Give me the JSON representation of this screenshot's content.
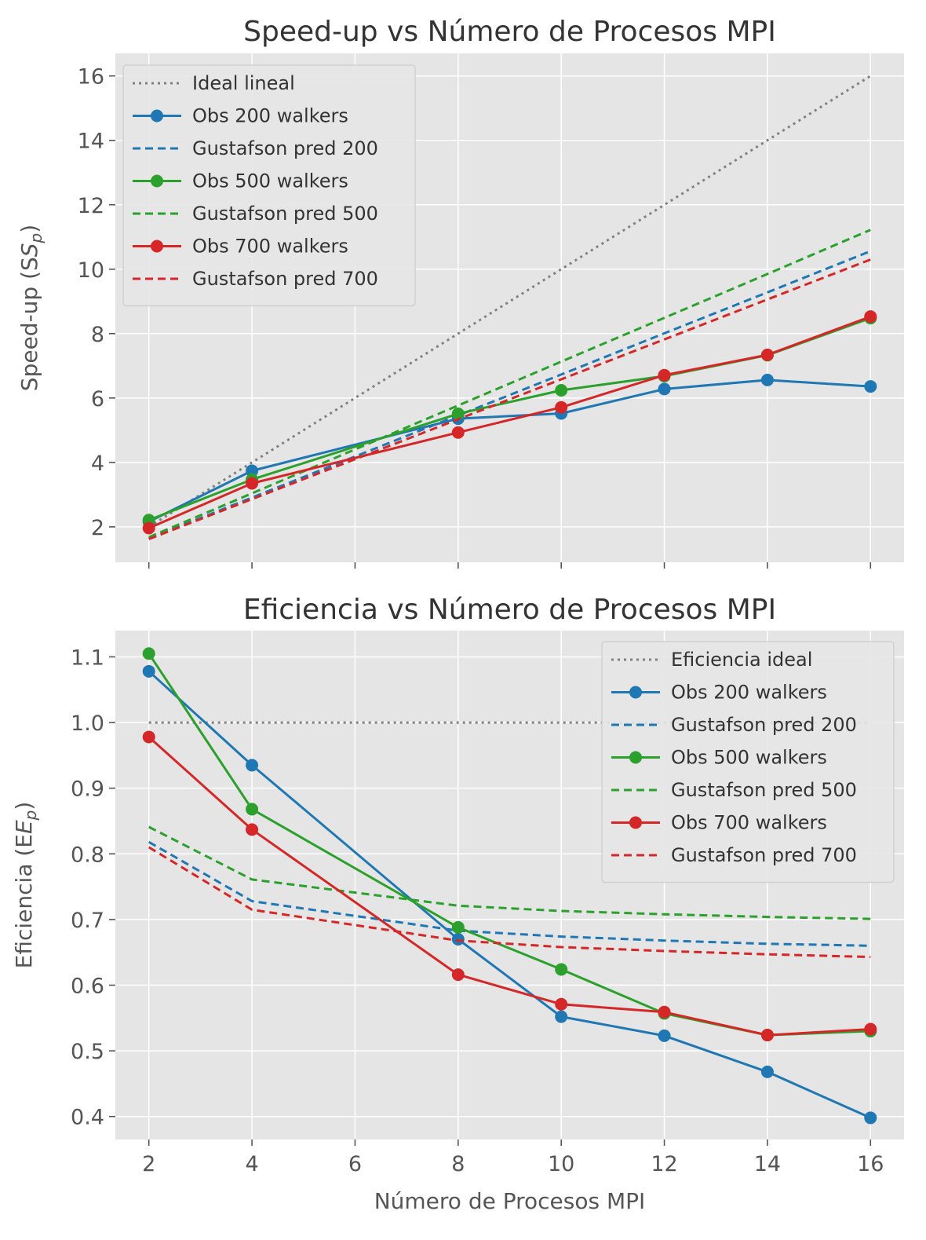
{
  "chart_data": [
    {
      "type": "line",
      "title": "Speed-up vs Número de Procesos MPI",
      "xlabel": "",
      "ylabel": "Speed-up (S",
      "ylabel_sub": "p",
      "ylabel_close": ")",
      "xlim": [
        1.35,
        16.65
      ],
      "ylim": [
        0.9,
        16.7
      ],
      "x_ticks": [
        2,
        4,
        6,
        8,
        10,
        12,
        14,
        16
      ],
      "x_tick_labels_shown": false,
      "y_ticks": [
        2,
        4,
        6,
        8,
        10,
        12,
        14,
        16
      ],
      "grid": true,
      "legend_position": "upper-left",
      "series": [
        {
          "name": "Ideal lineal",
          "style": "dotted",
          "color": "#808080",
          "markers": false,
          "x": [
            2,
            4,
            6,
            8,
            10,
            12,
            14,
            16
          ],
          "y": [
            2,
            4,
            6,
            8,
            10,
            12,
            14,
            16
          ]
        },
        {
          "name": "Obs 200 walkers",
          "style": "solid",
          "color": "#1f77b4",
          "markers": true,
          "x": [
            2,
            4,
            8,
            10,
            12,
            14,
            16
          ],
          "y": [
            2.16,
            3.74,
            5.36,
            5.52,
            6.28,
            6.56,
            6.36
          ]
        },
        {
          "name": "Gustafson pred 200",
          "style": "dashed",
          "color": "#1f77b4",
          "markers": false,
          "x": [
            2,
            4,
            8,
            10,
            12,
            14,
            16
          ],
          "y": [
            1.64,
            2.91,
            5.46,
            6.73,
            8.01,
            9.28,
            10.56
          ]
        },
        {
          "name": "Obs 500 walkers",
          "style": "solid",
          "color": "#2ca02c",
          "markers": true,
          "x": [
            2,
            4,
            8,
            10,
            12,
            14,
            16
          ],
          "y": [
            2.21,
            3.47,
            5.51,
            6.24,
            6.68,
            7.33,
            8.48
          ]
        },
        {
          "name": "Gustafson pred 500",
          "style": "dashed",
          "color": "#2ca02c",
          "markers": false,
          "x": [
            2,
            4,
            8,
            10,
            12,
            14,
            16
          ],
          "y": [
            1.68,
            3.04,
            5.77,
            7.13,
            8.49,
            9.85,
            11.22
          ]
        },
        {
          "name": "Obs 700 walkers",
          "style": "solid",
          "color": "#d62728",
          "markers": true,
          "x": [
            2,
            4,
            8,
            10,
            12,
            14,
            16
          ],
          "y": [
            1.96,
            3.35,
            4.93,
            5.71,
            6.71,
            7.34,
            8.53
          ]
        },
        {
          "name": "Gustafson pred 700",
          "style": "dashed",
          "color": "#d62728",
          "markers": false,
          "x": [
            2,
            4,
            8,
            10,
            12,
            14,
            16
          ],
          "y": [
            1.62,
            2.86,
            5.34,
            6.58,
            7.82,
            9.06,
            10.3
          ]
        }
      ]
    },
    {
      "type": "line",
      "title": "Eficiencia vs Número de Procesos MPI",
      "xlabel": "Número de Procesos MPI",
      "ylabel": "Eficiencia (E",
      "ylabel_sub": "p",
      "ylabel_close": ")",
      "xlim": [
        1.35,
        16.65
      ],
      "ylim": [
        0.365,
        1.14
      ],
      "x_ticks": [
        2,
        4,
        6,
        8,
        10,
        12,
        14,
        16
      ],
      "x_tick_labels_shown": true,
      "y_ticks": [
        0.4,
        0.5,
        0.6,
        0.7,
        0.8,
        0.9,
        1.0,
        1.1
      ],
      "y_tick_labels": [
        "0.4",
        "0.5",
        "0.6",
        "0.7",
        "0.8",
        "0.9",
        "1.0",
        "1.1"
      ],
      "grid": true,
      "legend_position": "upper-right",
      "series": [
        {
          "name": "Eficiencia ideal",
          "style": "dotted",
          "color": "#808080",
          "markers": false,
          "x": [
            2,
            4,
            6,
            8,
            10,
            12,
            14,
            16
          ],
          "y": [
            1,
            1,
            1,
            1,
            1,
            1,
            1,
            1
          ]
        },
        {
          "name": "Obs 200 walkers",
          "style": "solid",
          "color": "#1f77b4",
          "markers": true,
          "x": [
            2,
            4,
            8,
            10,
            12,
            14,
            16
          ],
          "y": [
            1.078,
            0.935,
            0.67,
            0.552,
            0.523,
            0.468,
            0.398
          ]
        },
        {
          "name": "Gustafson pred 200",
          "style": "dashed",
          "color": "#1f77b4",
          "markers": false,
          "x": [
            2,
            4,
            8,
            10,
            12,
            14,
            16
          ],
          "y": [
            0.818,
            0.728,
            0.683,
            0.674,
            0.668,
            0.663,
            0.66
          ]
        },
        {
          "name": "Obs 500 walkers",
          "style": "solid",
          "color": "#2ca02c",
          "markers": true,
          "x": [
            2,
            4,
            8,
            10,
            12,
            14,
            16
          ],
          "y": [
            1.105,
            0.868,
            0.688,
            0.624,
            0.557,
            0.524,
            0.53
          ]
        },
        {
          "name": "Gustafson pred 500",
          "style": "dashed",
          "color": "#2ca02c",
          "markers": false,
          "x": [
            2,
            4,
            8,
            10,
            12,
            14,
            16
          ],
          "y": [
            0.841,
            0.761,
            0.721,
            0.713,
            0.708,
            0.704,
            0.701
          ]
        },
        {
          "name": "Obs 700 walkers",
          "style": "solid",
          "color": "#d62728",
          "markers": true,
          "x": [
            2,
            4,
            8,
            10,
            12,
            14,
            16
          ],
          "y": [
            0.978,
            0.837,
            0.616,
            0.571,
            0.559,
            0.524,
            0.533
          ]
        },
        {
          "name": "Gustafson pred 700",
          "style": "dashed",
          "color": "#d62728",
          "markers": false,
          "x": [
            2,
            4,
            8,
            10,
            12,
            14,
            16
          ],
          "y": [
            0.81,
            0.715,
            0.668,
            0.658,
            0.652,
            0.647,
            0.643
          ]
        }
      ]
    }
  ]
}
